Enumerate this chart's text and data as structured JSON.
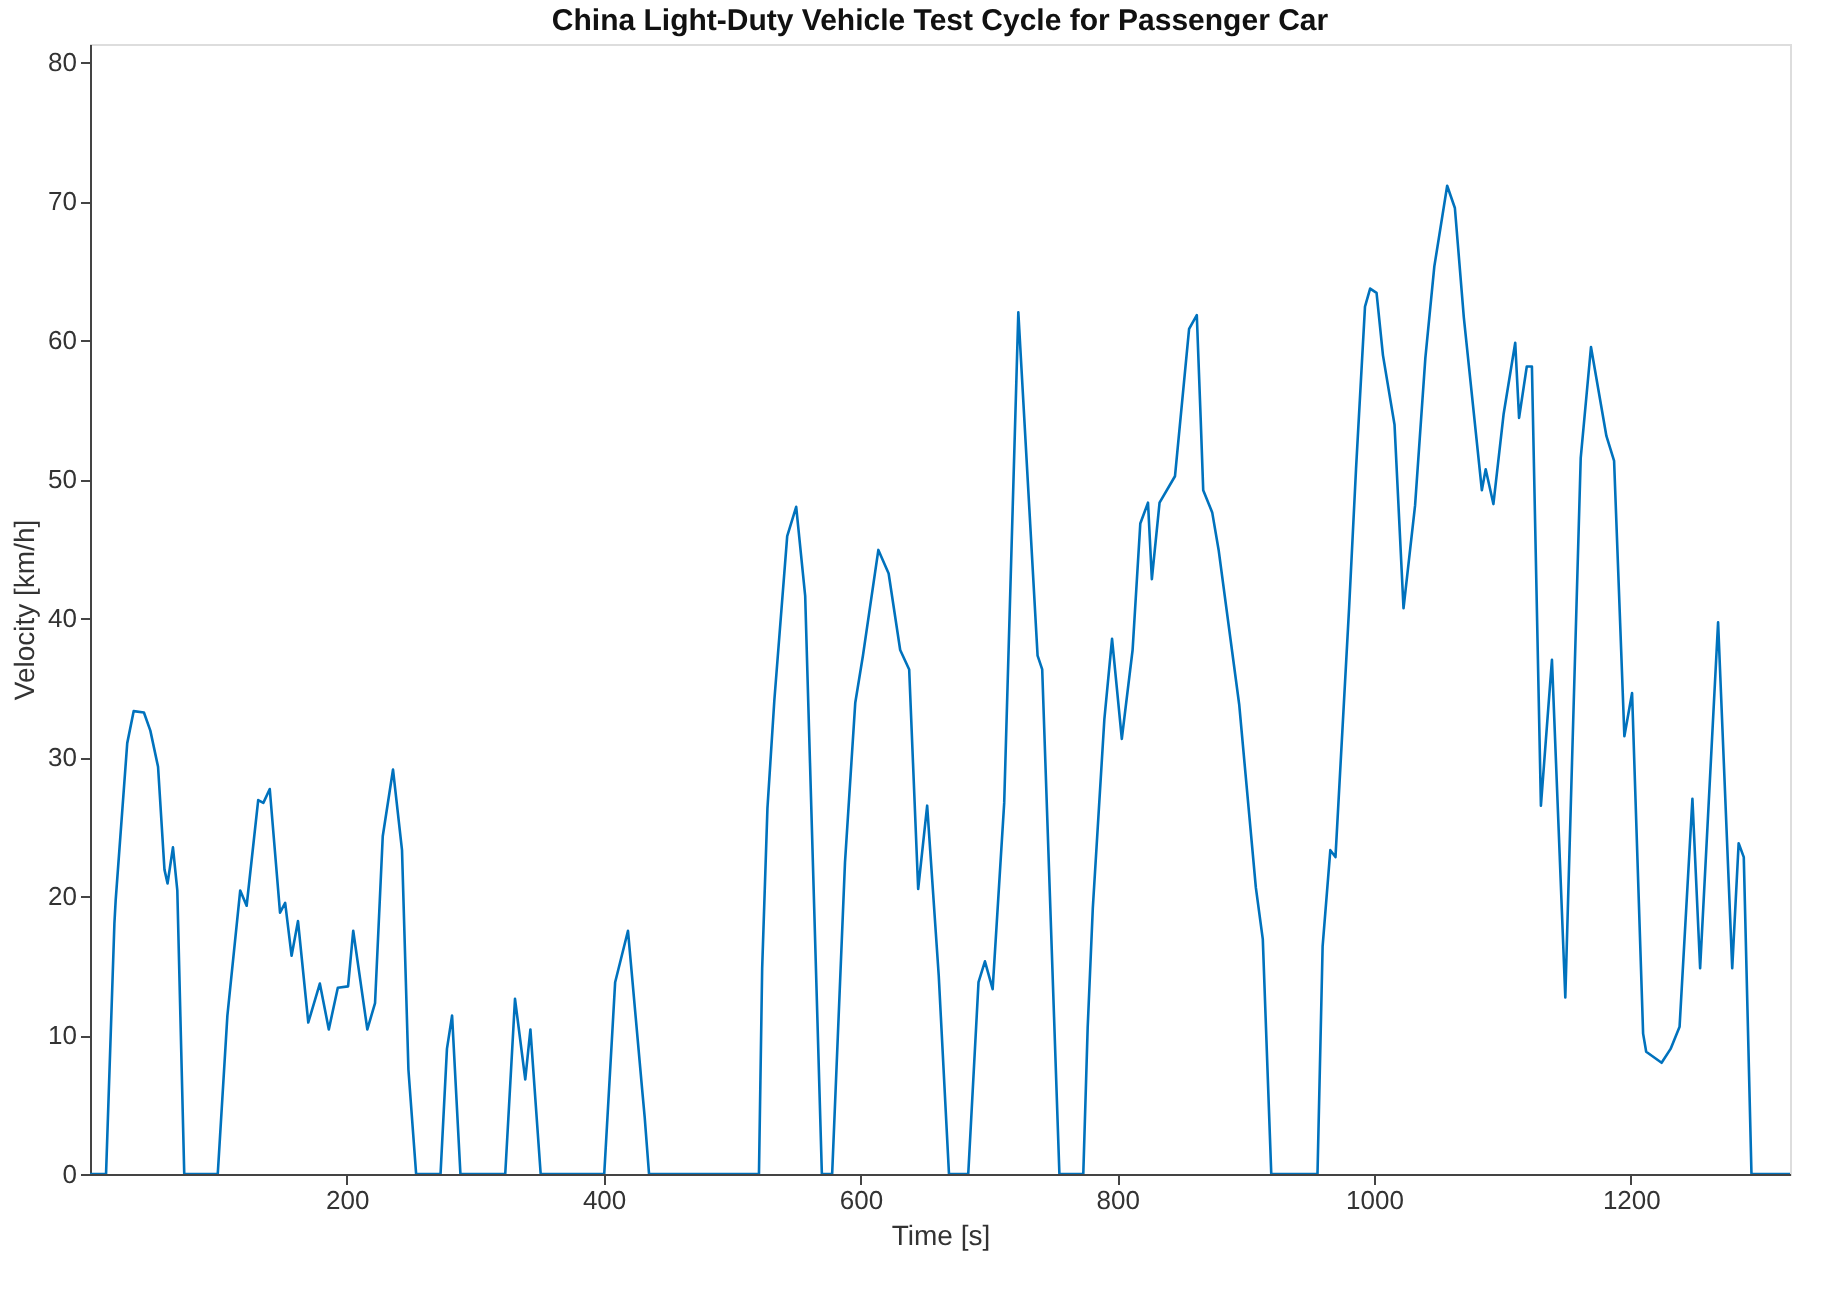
{
  "chart_data": {
    "type": "line",
    "title": "China Light-Duty Vehicle Test Cycle for Passenger Car",
    "xlabel": "Time [s]",
    "ylabel": "Velocity [km/h]",
    "xlim": [
      0,
      1324
    ],
    "ylim": [
      0,
      81.3
    ],
    "xticks": [
      200,
      400,
      600,
      800,
      1000,
      1200
    ],
    "yticks": [
      0,
      10,
      20,
      30,
      40,
      50,
      60,
      70,
      80
    ],
    "grid": false,
    "line_style": "solid",
    "series": [
      {
        "color": "#0072bd",
        "x": [
          0,
          12.5,
          19,
          20,
          29,
          34,
          42,
          47,
          53,
          58,
          60.4,
          64.6,
          68,
          73.4,
          99.5,
          107,
          117,
          122,
          131,
          135,
          140,
          148,
          152,
          157,
          162,
          170,
          179,
          186,
          193,
          201,
          205,
          216,
          222,
          228,
          236,
          243,
          248,
          254,
          273,
          278,
          282,
          288.5,
          323.4,
          331,
          339,
          343,
          351,
          400.5,
          409,
          419,
          430,
          432,
          435.4,
          521,
          523.5,
          527.6,
          533,
          543,
          550,
          557,
          570,
          578,
          588,
          596,
          602,
          614,
          622,
          631,
          638,
          645,
          652,
          661,
          669,
          684,
          692,
          697,
          703,
          712,
          723,
          738,
          741.6,
          755,
          773.6,
          777,
          781,
          790,
          796,
          803.6,
          812,
          818,
          824,
          827,
          833,
          845,
          856,
          862,
          865,
          867,
          874,
          879,
          895,
          908,
          913.4,
          920,
          956,
          960,
          966,
          970,
          980.6,
          986,
          993,
          997,
          1002,
          1007,
          1016,
          1023,
          1032,
          1040,
          1047,
          1057,
          1063,
          1070,
          1084,
          1087,
          1093,
          1101,
          1110,
          1113,
          1119,
          1123,
          1130,
          1138.6,
          1149,
          1161,
          1169,
          1181,
          1187,
          1195,
          1201,
          1209.6,
          1212,
          1224,
          1231,
          1238,
          1248,
          1254,
          1268,
          1279,
          1284,
          1288,
          1294,
          1324
        ],
        "values": [
          0,
          0,
          18,
          19.7,
          31,
          33.3,
          33.2,
          31.9,
          29.3,
          21.9,
          20.9,
          23.5,
          20.4,
          0,
          0,
          11.4,
          20.4,
          19.3,
          26.9,
          26.7,
          27.7,
          18.8,
          19.5,
          15.7,
          18.2,
          10.9,
          13.7,
          10.4,
          13.4,
          13.5,
          17.5,
          10.4,
          12.3,
          24.3,
          29.1,
          23.3,
          7.5,
          0,
          0,
          9,
          11.4,
          0,
          0,
          12.6,
          6.8,
          10.4,
          0,
          0,
          13.8,
          17.5,
          6.1,
          4.1,
          0,
          0,
          14.8,
          26.3,
          34.1,
          45.9,
          48,
          41.6,
          0,
          0,
          22.4,
          33.9,
          37.3,
          44.9,
          43.2,
          37.7,
          36.3,
          20.5,
          26.5,
          14.3,
          0,
          0,
          13.8,
          15.3,
          13.3,
          26.7,
          62,
          37.3,
          36.3,
          0,
          0,
          10.5,
          19.1,
          32.7,
          38.5,
          31.3,
          37.7,
          46.8,
          48.3,
          42.8,
          48.3,
          50.2,
          60.8,
          61.8,
          54.4,
          49.2,
          47.6,
          44.9,
          33.8,
          20.6,
          16.9,
          0,
          0,
          16.4,
          23.3,
          22.8,
          40.7,
          50.7,
          62.4,
          63.7,
          63.4,
          58.9,
          53.9,
          40.7,
          48.1,
          58.7,
          65.3,
          71.1,
          69.5,
          61.6,
          49.2,
          50.7,
          48.2,
          54.7,
          59.8,
          54.4,
          58.1,
          58.1,
          26.5,
          37,
          12.7,
          51.5,
          59.5,
          53.1,
          51.3,
          31.5,
          34.6,
          10.1,
          8.8,
          8,
          9,
          10.6,
          27,
          14.8,
          39.7,
          14.8,
          23.8,
          22.8,
          0,
          0
        ]
      }
    ]
  }
}
